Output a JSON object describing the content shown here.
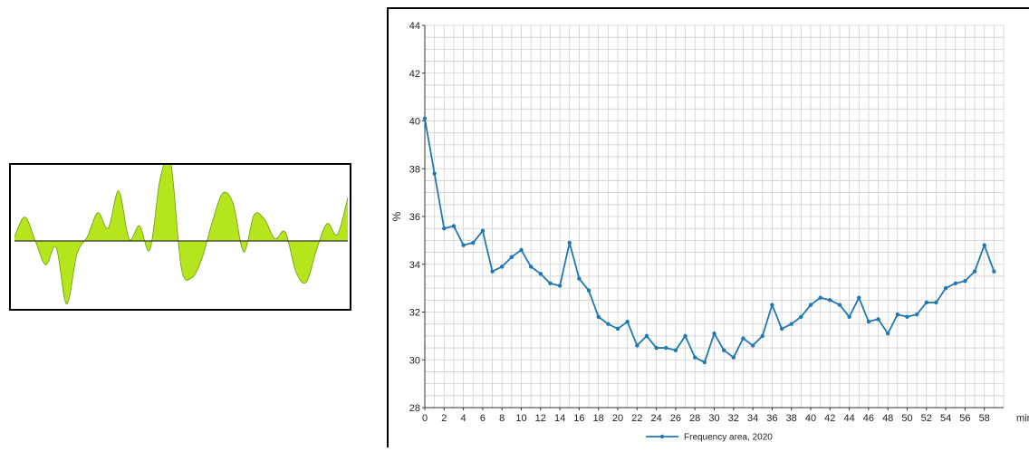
{
  "chart_data": [
    {
      "type": "area",
      "title": "",
      "xlabel": "",
      "ylabel": "",
      "grid": false,
      "legend": "none",
      "colors": {
        "fill": "#b5e61d",
        "stroke": "#6e9a10",
        "baseline": "#333333"
      },
      "series": [
        {
          "values": [
            0.1,
            0.55,
            0.0,
            -0.55,
            -0.15,
            -1.45,
            -0.3,
            0.1,
            0.65,
            0.3,
            1.15,
            0.05,
            0.35,
            -0.2,
            1.45,
            1.8,
            -0.6,
            -0.85,
            -0.4,
            0.45,
            1.1,
            0.85,
            -0.25,
            0.6,
            0.5,
            0.05,
            0.2,
            -0.7,
            -0.95,
            -0.2,
            0.4,
            0.15,
            1.0
          ]
        }
      ]
    },
    {
      "type": "line",
      "title": "",
      "xlabel": "min",
      "ylabel": "%",
      "xlim": [
        0,
        60
      ],
      "ylim": [
        28,
        44
      ],
      "xticks": [
        0,
        2,
        4,
        6,
        8,
        10,
        12,
        14,
        16,
        18,
        20,
        22,
        24,
        26,
        28,
        30,
        32,
        34,
        36,
        38,
        40,
        42,
        44,
        46,
        48,
        50,
        52,
        54,
        56,
        58
      ],
      "yticks": [
        28,
        30,
        32,
        34,
        36,
        38,
        40,
        42,
        44
      ],
      "grid": true,
      "legend": "bottom",
      "colors": {
        "line": "#1f77b4",
        "grid": "#cfcfcf"
      },
      "series": [
        {
          "name": "Frequency area, 2020",
          "x": [
            0,
            1,
            2,
            3,
            4,
            5,
            6,
            7,
            8,
            9,
            10,
            11,
            12,
            13,
            14,
            15,
            16,
            17,
            18,
            19,
            20,
            21,
            22,
            23,
            24,
            25,
            26,
            27,
            28,
            29,
            30,
            31,
            32,
            33,
            34,
            35,
            36,
            37,
            38,
            39,
            40,
            41,
            42,
            43,
            44,
            45,
            46,
            47,
            48,
            49,
            50,
            51,
            52,
            53,
            54,
            55,
            56,
            57,
            58,
            59
          ],
          "values": [
            40.1,
            37.8,
            35.5,
            35.6,
            34.8,
            34.9,
            35.4,
            33.7,
            33.9,
            34.3,
            34.6,
            33.9,
            33.6,
            33.2,
            33.1,
            34.9,
            33.4,
            32.9,
            31.8,
            31.5,
            31.3,
            31.6,
            30.6,
            31.0,
            30.5,
            30.5,
            30.4,
            31.0,
            30.1,
            29.9,
            31.1,
            30.4,
            30.1,
            30.9,
            30.6,
            31.0,
            32.3,
            31.3,
            31.5,
            31.8,
            32.3,
            32.6,
            32.5,
            32.3,
            31.8,
            32.6,
            31.6,
            31.7,
            31.1,
            31.9,
            31.8,
            31.9,
            32.4,
            32.4,
            33.0,
            33.2,
            33.3,
            33.7,
            34.8,
            33.7
          ]
        }
      ]
    }
  ]
}
